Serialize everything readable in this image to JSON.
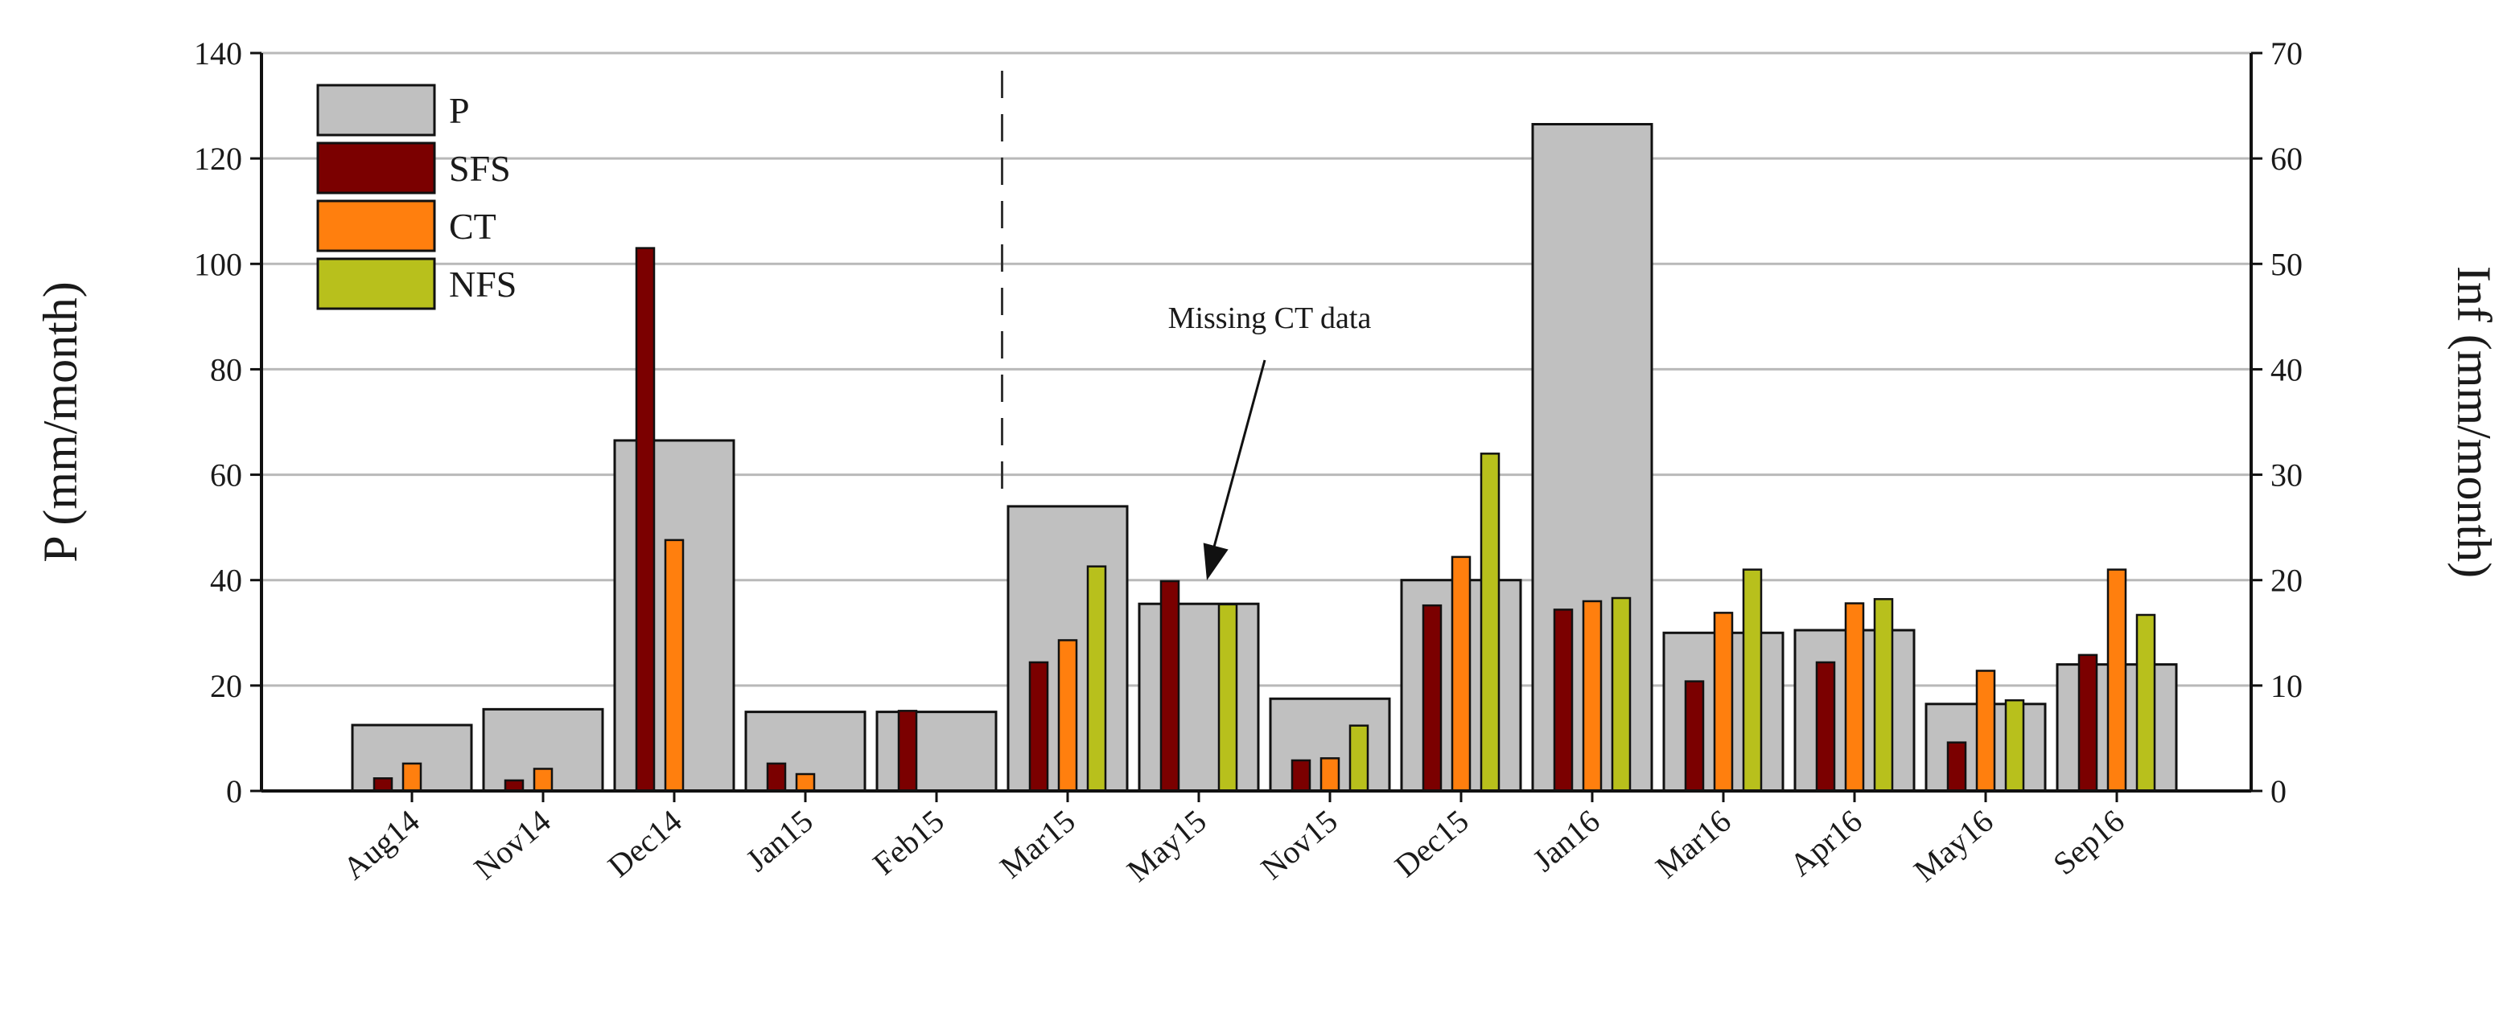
{
  "chart_data": {
    "type": "bar",
    "title": "",
    "categories": [
      "Aug14",
      "Nov14",
      "Dec14",
      "Jan15",
      "Feb15",
      "Mar15",
      "May15",
      "Nov15",
      "Dec15",
      "Jan16",
      "Mar16",
      "Apr16",
      "May16",
      "Sep16"
    ],
    "ylabel": "P (mm/month)",
    "y2label": "Inf (mm/month)",
    "ylim": [
      0,
      140
    ],
    "y2lim": [
      0,
      70
    ],
    "yticks": [
      "0",
      "20",
      "40",
      "60",
      "80",
      "100",
      "120",
      "140"
    ],
    "y2ticks": [
      "0",
      "10",
      "20",
      "30",
      "40",
      "50",
      "60",
      "70"
    ],
    "grid": true,
    "legend_position": "top-left",
    "series": [
      {
        "name": "P",
        "axis": "left",
        "color": "#c0c0c0",
        "values": [
          12.5,
          15.5,
          66.5,
          15.0,
          15.0,
          54.0,
          35.5,
          17.5,
          40.0,
          126.5,
          30.0,
          30.5,
          16.5,
          24.0
        ]
      },
      {
        "name": "SFS",
        "axis": "right",
        "color": "#7b0000",
        "values": [
          1.2,
          1.0,
          51.5,
          2.6,
          7.6,
          12.2,
          19.9,
          2.9,
          17.6,
          17.2,
          10.4,
          12.2,
          4.6,
          12.9
        ]
      },
      {
        "name": "CT",
        "axis": "right",
        "color": "#ff7f0e",
        "values": [
          2.6,
          2.1,
          23.8,
          1.6,
          null,
          14.3,
          null,
          3.1,
          22.2,
          18.0,
          16.9,
          17.8,
          11.4,
          21.0
        ]
      },
      {
        "name": "NFS",
        "axis": "right",
        "color": "#b8c01c",
        "values": [
          null,
          null,
          null,
          null,
          null,
          21.3,
          17.7,
          6.2,
          32.0,
          18.3,
          21.0,
          18.2,
          8.6,
          16.7
        ]
      }
    ],
    "annotations": [
      {
        "text": "Missing CT data",
        "target_category": "May15"
      }
    ],
    "dashed_divider_after_category": "Feb15"
  }
}
